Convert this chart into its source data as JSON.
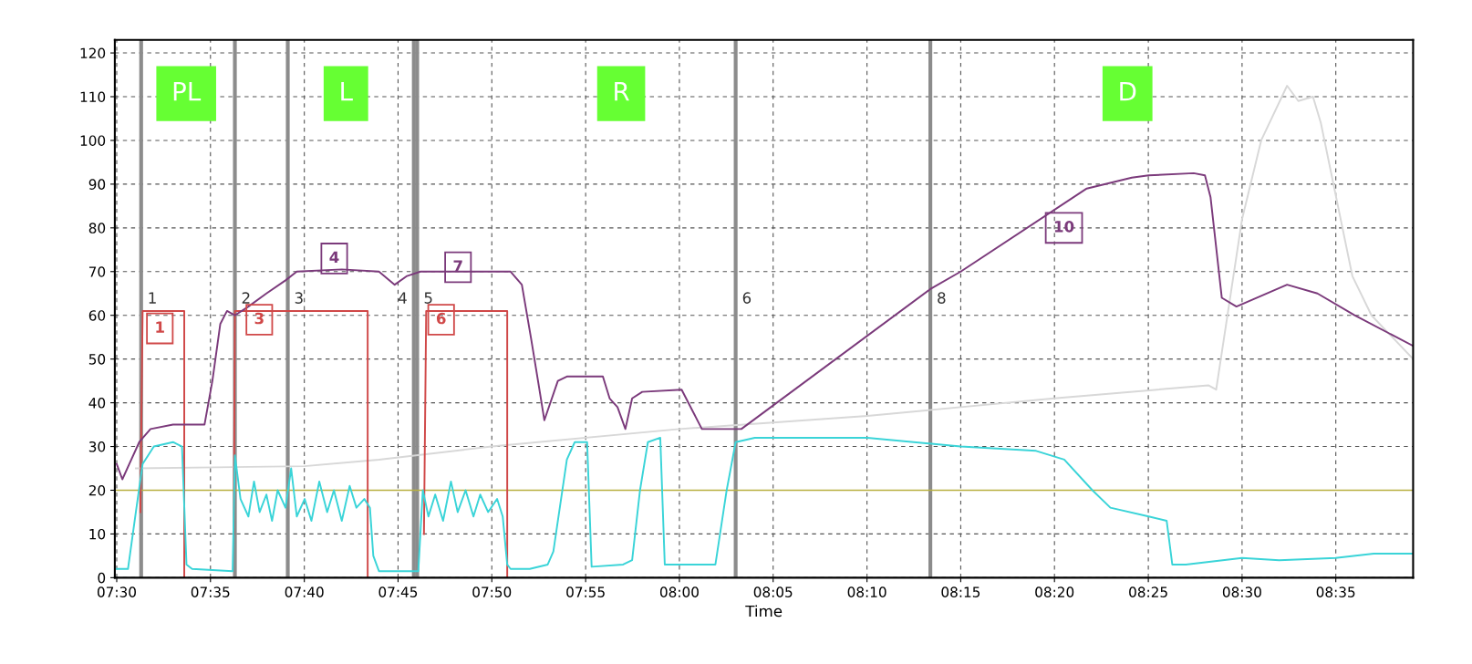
{
  "chart_data": {
    "type": "line",
    "xlabel": "Time",
    "xlim": [
      7.4983,
      8.652
    ],
    "ylim": [
      0,
      123
    ],
    "xticks": [
      {
        "value": 7.5,
        "label": "07:30"
      },
      {
        "value": 7.5833,
        "label": "07:35"
      },
      {
        "value": 7.6667,
        "label": "07:40"
      },
      {
        "value": 7.75,
        "label": "07:45"
      },
      {
        "value": 7.8333,
        "label": "07:50"
      },
      {
        "value": 7.9167,
        "label": "07:55"
      },
      {
        "value": 8.0,
        "label": "08:00"
      },
      {
        "value": 8.0833,
        "label": "08:05"
      },
      {
        "value": 8.1667,
        "label": "08:10"
      },
      {
        "value": 8.25,
        "label": "08:15"
      },
      {
        "value": 8.3333,
        "label": "08:20"
      },
      {
        "value": 8.4167,
        "label": "08:25"
      },
      {
        "value": 8.5,
        "label": "08:30"
      },
      {
        "value": 8.5833,
        "label": "08:35"
      }
    ],
    "yticks": [
      0,
      10,
      20,
      30,
      40,
      50,
      60,
      70,
      80,
      90,
      100,
      110,
      120
    ],
    "grid": true,
    "legend": false,
    "marker": "none",
    "line_style": "solid",
    "series": [
      {
        "color": "#d8d8d8",
        "x": [
          7.517,
          7.667,
          7.733,
          7.833,
          8.0,
          8.167,
          8.333,
          8.47,
          8.477,
          8.5,
          8.517,
          8.54,
          8.55,
          8.563,
          8.57,
          8.598,
          8.615,
          8.652
        ],
        "values": [
          25,
          25.5,
          27,
          30,
          34,
          37,
          41,
          44,
          43,
          82,
          100,
          112.5,
          109,
          110,
          104,
          69,
          60,
          50
        ]
      },
      {
        "color": "#d04848",
        "x": [
          7.521,
          7.523,
          7.56,
          7.56,
          7.58,
          7.604,
          7.605,
          7.723,
          7.723,
          7.74,
          7.773,
          7.775,
          7.847,
          7.847
        ],
        "values": [
          15,
          61,
          61,
          0,
          null,
          10,
          61,
          61,
          0,
          null,
          10,
          61,
          61,
          0
        ]
      },
      {
        "color": "#3ad4d8",
        "x": [
          7.5,
          7.51,
          7.517,
          7.523,
          7.533,
          7.55,
          7.558,
          7.562,
          7.567,
          7.603,
          7.605,
          7.61,
          7.617,
          7.622,
          7.627,
          7.633,
          7.638,
          7.643,
          7.65,
          7.655,
          7.66,
          7.667,
          7.673,
          7.68,
          7.687,
          7.693,
          7.7,
          7.707,
          7.713,
          7.72,
          7.725,
          7.728,
          7.733,
          7.768,
          7.772,
          7.777,
          7.783,
          7.79,
          7.797,
          7.803,
          7.81,
          7.817,
          7.823,
          7.83,
          7.838,
          7.843,
          7.847,
          7.85,
          7.867,
          7.883,
          7.888,
          7.9,
          7.907,
          7.918,
          7.922,
          7.95,
          7.958,
          7.965,
          7.972,
          7.983,
          7.987,
          8.032,
          8.042,
          8.05,
          8.067,
          8.167,
          8.25,
          8.317,
          8.342,
          8.367,
          8.383,
          8.417,
          8.433,
          8.438,
          8.45,
          8.5,
          8.533,
          8.583,
          8.617,
          8.652
        ],
        "values": [
          2,
          2,
          15,
          26,
          30,
          31,
          30,
          3,
          2,
          1.5,
          28,
          18,
          14,
          22,
          15,
          19,
          13,
          20,
          16,
          25,
          14,
          18,
          13,
          22,
          15,
          20,
          13,
          21,
          16,
          18,
          16,
          5,
          1.5,
          1.5,
          20,
          14,
          19,
          13,
          22,
          15,
          20,
          14,
          19,
          15,
          18,
          14,
          3,
          2,
          2,
          3,
          6,
          27,
          31,
          31,
          2.5,
          3,
          4,
          20,
          31,
          32,
          3,
          3,
          20,
          31,
          32,
          32,
          30,
          29,
          27,
          20,
          16,
          14,
          13,
          3,
          3,
          4.5,
          4,
          4.5,
          5.5,
          5.5
        ]
      },
      {
        "color": "#7b3a7b",
        "x": [
          7.5,
          7.505,
          7.52,
          7.53,
          7.55,
          7.578,
          7.585,
          7.592,
          7.598,
          7.605,
          7.617,
          7.633,
          7.65,
          7.66,
          7.7,
          7.733,
          7.747,
          7.758,
          7.77,
          7.85,
          7.86,
          7.868,
          7.875,
          7.88,
          7.892,
          7.9,
          7.932,
          7.938,
          7.945,
          7.952,
          7.958,
          7.967,
          8.002,
          8.012,
          8.02,
          8.055,
          8.223,
          8.25,
          8.362,
          8.402,
          8.417,
          8.457,
          8.467,
          8.472,
          8.482,
          8.495,
          8.54,
          8.567,
          8.6,
          8.652
        ],
        "values": [
          26,
          22.5,
          31,
          34,
          35,
          35,
          45,
          58,
          61,
          60,
          62,
          65,
          68,
          70,
          70.5,
          70,
          67,
          69,
          70,
          70,
          67,
          55,
          44,
          36,
          45,
          46,
          46,
          41,
          39,
          34,
          41,
          42.5,
          43,
          38,
          34,
          34,
          66,
          70,
          89,
          91.5,
          92,
          92.5,
          92,
          87,
          64,
          62,
          67,
          65,
          60,
          53
        ]
      }
    ],
    "ref_lines": [
      {
        "axis": "y",
        "value": 20,
        "color": "#b8b040"
      },
      {
        "axis": "x",
        "value": 7.5217,
        "color": "#8c8c8c"
      },
      {
        "axis": "x",
        "value": 7.605,
        "color": "#8c8c8c"
      },
      {
        "axis": "x",
        "value": 7.652,
        "color": "#8c8c8c"
      },
      {
        "axis": "x",
        "value": 7.764,
        "color": "#8c8c8c"
      },
      {
        "axis": "x",
        "value": 7.767,
        "color": "#8c8c8c"
      },
      {
        "axis": "x",
        "value": 8.05,
        "color": "#8c8c8c"
      },
      {
        "axis": "x",
        "value": 8.223,
        "color": "#8c8c8c"
      }
    ],
    "annotations": [
      "PL",
      "L",
      "R",
      "D",
      {
        "text": "1",
        "x": 7.5217,
        "y": 62
      },
      {
        "text": "2",
        "x": 7.605,
        "y": 62
      },
      {
        "text": "3",
        "x": 7.652,
        "y": 62
      },
      {
        "text": "4",
        "x": 7.764,
        "y": 62
      },
      {
        "text": "5",
        "x": 7.767,
        "y": 62
      },
      {
        "text": "6",
        "x": 8.05,
        "y": 62
      },
      {
        "text": "8",
        "x": 8.223,
        "y": 62
      },
      {
        "text": "1",
        "x": 7.5383,
        "y": 57
      },
      {
        "text": "3",
        "x": 7.6267,
        "y": 59
      },
      {
        "text": "6",
        "x": 7.7883,
        "y": 59
      },
      {
        "text": "4",
        "x": 7.6933,
        "y": 73
      },
      {
        "text": "7",
        "x": 7.8033,
        "y": 71
      },
      {
        "text": "10",
        "x": 8.3417,
        "y": 80
      }
    ]
  }
}
